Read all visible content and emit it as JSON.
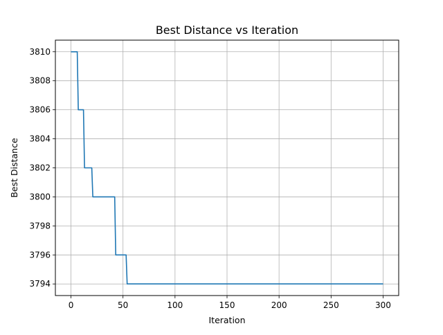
{
  "chart_data": {
    "type": "line",
    "title": "Best Distance vs Iteration",
    "xlabel": "Iteration",
    "ylabel": "Best Distance",
    "xlim": [
      -15,
      315
    ],
    "ylim": [
      3793.2,
      3810.8
    ],
    "xticks": [
      0,
      50,
      100,
      150,
      200,
      250,
      300
    ],
    "yticks": [
      3794,
      3796,
      3798,
      3800,
      3802,
      3804,
      3806,
      3808,
      3810
    ],
    "grid": true,
    "series": [
      {
        "color": "#1f77b4",
        "x": [
          0,
          6,
          7,
          12,
          13,
          20,
          21,
          42,
          43,
          53,
          54,
          300
        ],
        "y": [
          3810,
          3810,
          3806,
          3806,
          3802,
          3802,
          3800,
          3800,
          3796,
          3796,
          3794,
          3794
        ]
      }
    ]
  }
}
